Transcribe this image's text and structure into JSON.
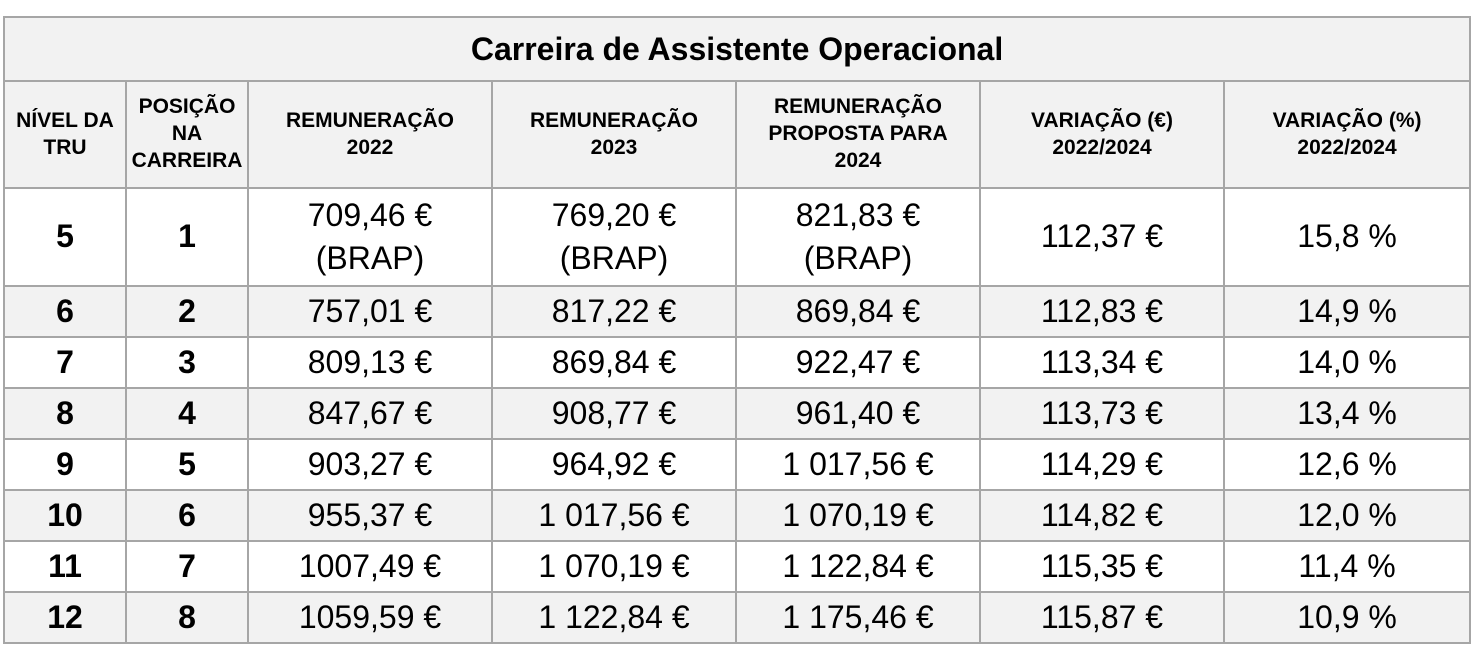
{
  "title": "Carreira de Assistente Operacional",
  "headers": {
    "nivel_l1": "NÍVEL DA",
    "nivel_l2": "TRU",
    "posicao_l1": "POSIÇÃO",
    "posicao_l2": "NA",
    "posicao_l3": "CARREIRA",
    "rem2022_l1": "REMUNERAÇÃO",
    "rem2022_l2": "2022",
    "rem2023_l1": "REMUNERAÇÃO",
    "rem2023_l2": "2023",
    "rem2024_l1": "REMUNERAÇÃO",
    "rem2024_l2": "PROPOSTA PARA",
    "rem2024_l3": "2024",
    "vareur_l1": "VARIAÇÃO (€)",
    "vareur_l2": "2022/2024",
    "varpct_l1": "VARIAÇÃO (%)",
    "varpct_l2": "2022/2024"
  },
  "rows": [
    {
      "nivel": "5",
      "posicao": "1",
      "rem2022": "709,46 €",
      "rem2022_note": "(BRAP)",
      "rem2023": "769,20 €",
      "rem2023_note": "(BRAP)",
      "rem2024": "821,83 €",
      "rem2024_note": "(BRAP)",
      "var_eur": "112,37 €",
      "var_pct": "15,8 %"
    },
    {
      "nivel": "6",
      "posicao": "2",
      "rem2022": "757,01 €",
      "rem2023": "817,22 €",
      "rem2024": "869,84 €",
      "var_eur": "112,83 €",
      "var_pct": "14,9 %"
    },
    {
      "nivel": "7",
      "posicao": "3",
      "rem2022": "809,13 €",
      "rem2023": "869,84 €",
      "rem2024": "922,47 €",
      "var_eur": "113,34 €",
      "var_pct": "14,0 %"
    },
    {
      "nivel": "8",
      "posicao": "4",
      "rem2022": "847,67 €",
      "rem2023": "908,77 €",
      "rem2024": "961,40 €",
      "var_eur": "113,73 €",
      "var_pct": "13,4 %"
    },
    {
      "nivel": "9",
      "posicao": "5",
      "rem2022": "903,27 €",
      "rem2023": "964,92 €",
      "rem2024": "1 017,56 €",
      "var_eur": "114,29 €",
      "var_pct": "12,6 %"
    },
    {
      "nivel": "10",
      "posicao": "6",
      "rem2022": "955,37 €",
      "rem2023": "1 017,56 €",
      "rem2024": "1 070,19 €",
      "var_eur": "114,82 €",
      "var_pct": "12,0 %"
    },
    {
      "nivel": "11",
      "posicao": "7",
      "rem2022": "1007,49 €",
      "rem2023": "1 070,19 €",
      "rem2024": "1 122,84 €",
      "var_eur": "115,35 €",
      "var_pct": "11,4 %"
    },
    {
      "nivel": "12",
      "posicao": "8",
      "rem2022": "1059,59 €",
      "rem2023": "1 122,84 €",
      "rem2024": "1 175,46 €",
      "var_eur": "115,87 €",
      "var_pct": "10,9 %"
    }
  ]
}
